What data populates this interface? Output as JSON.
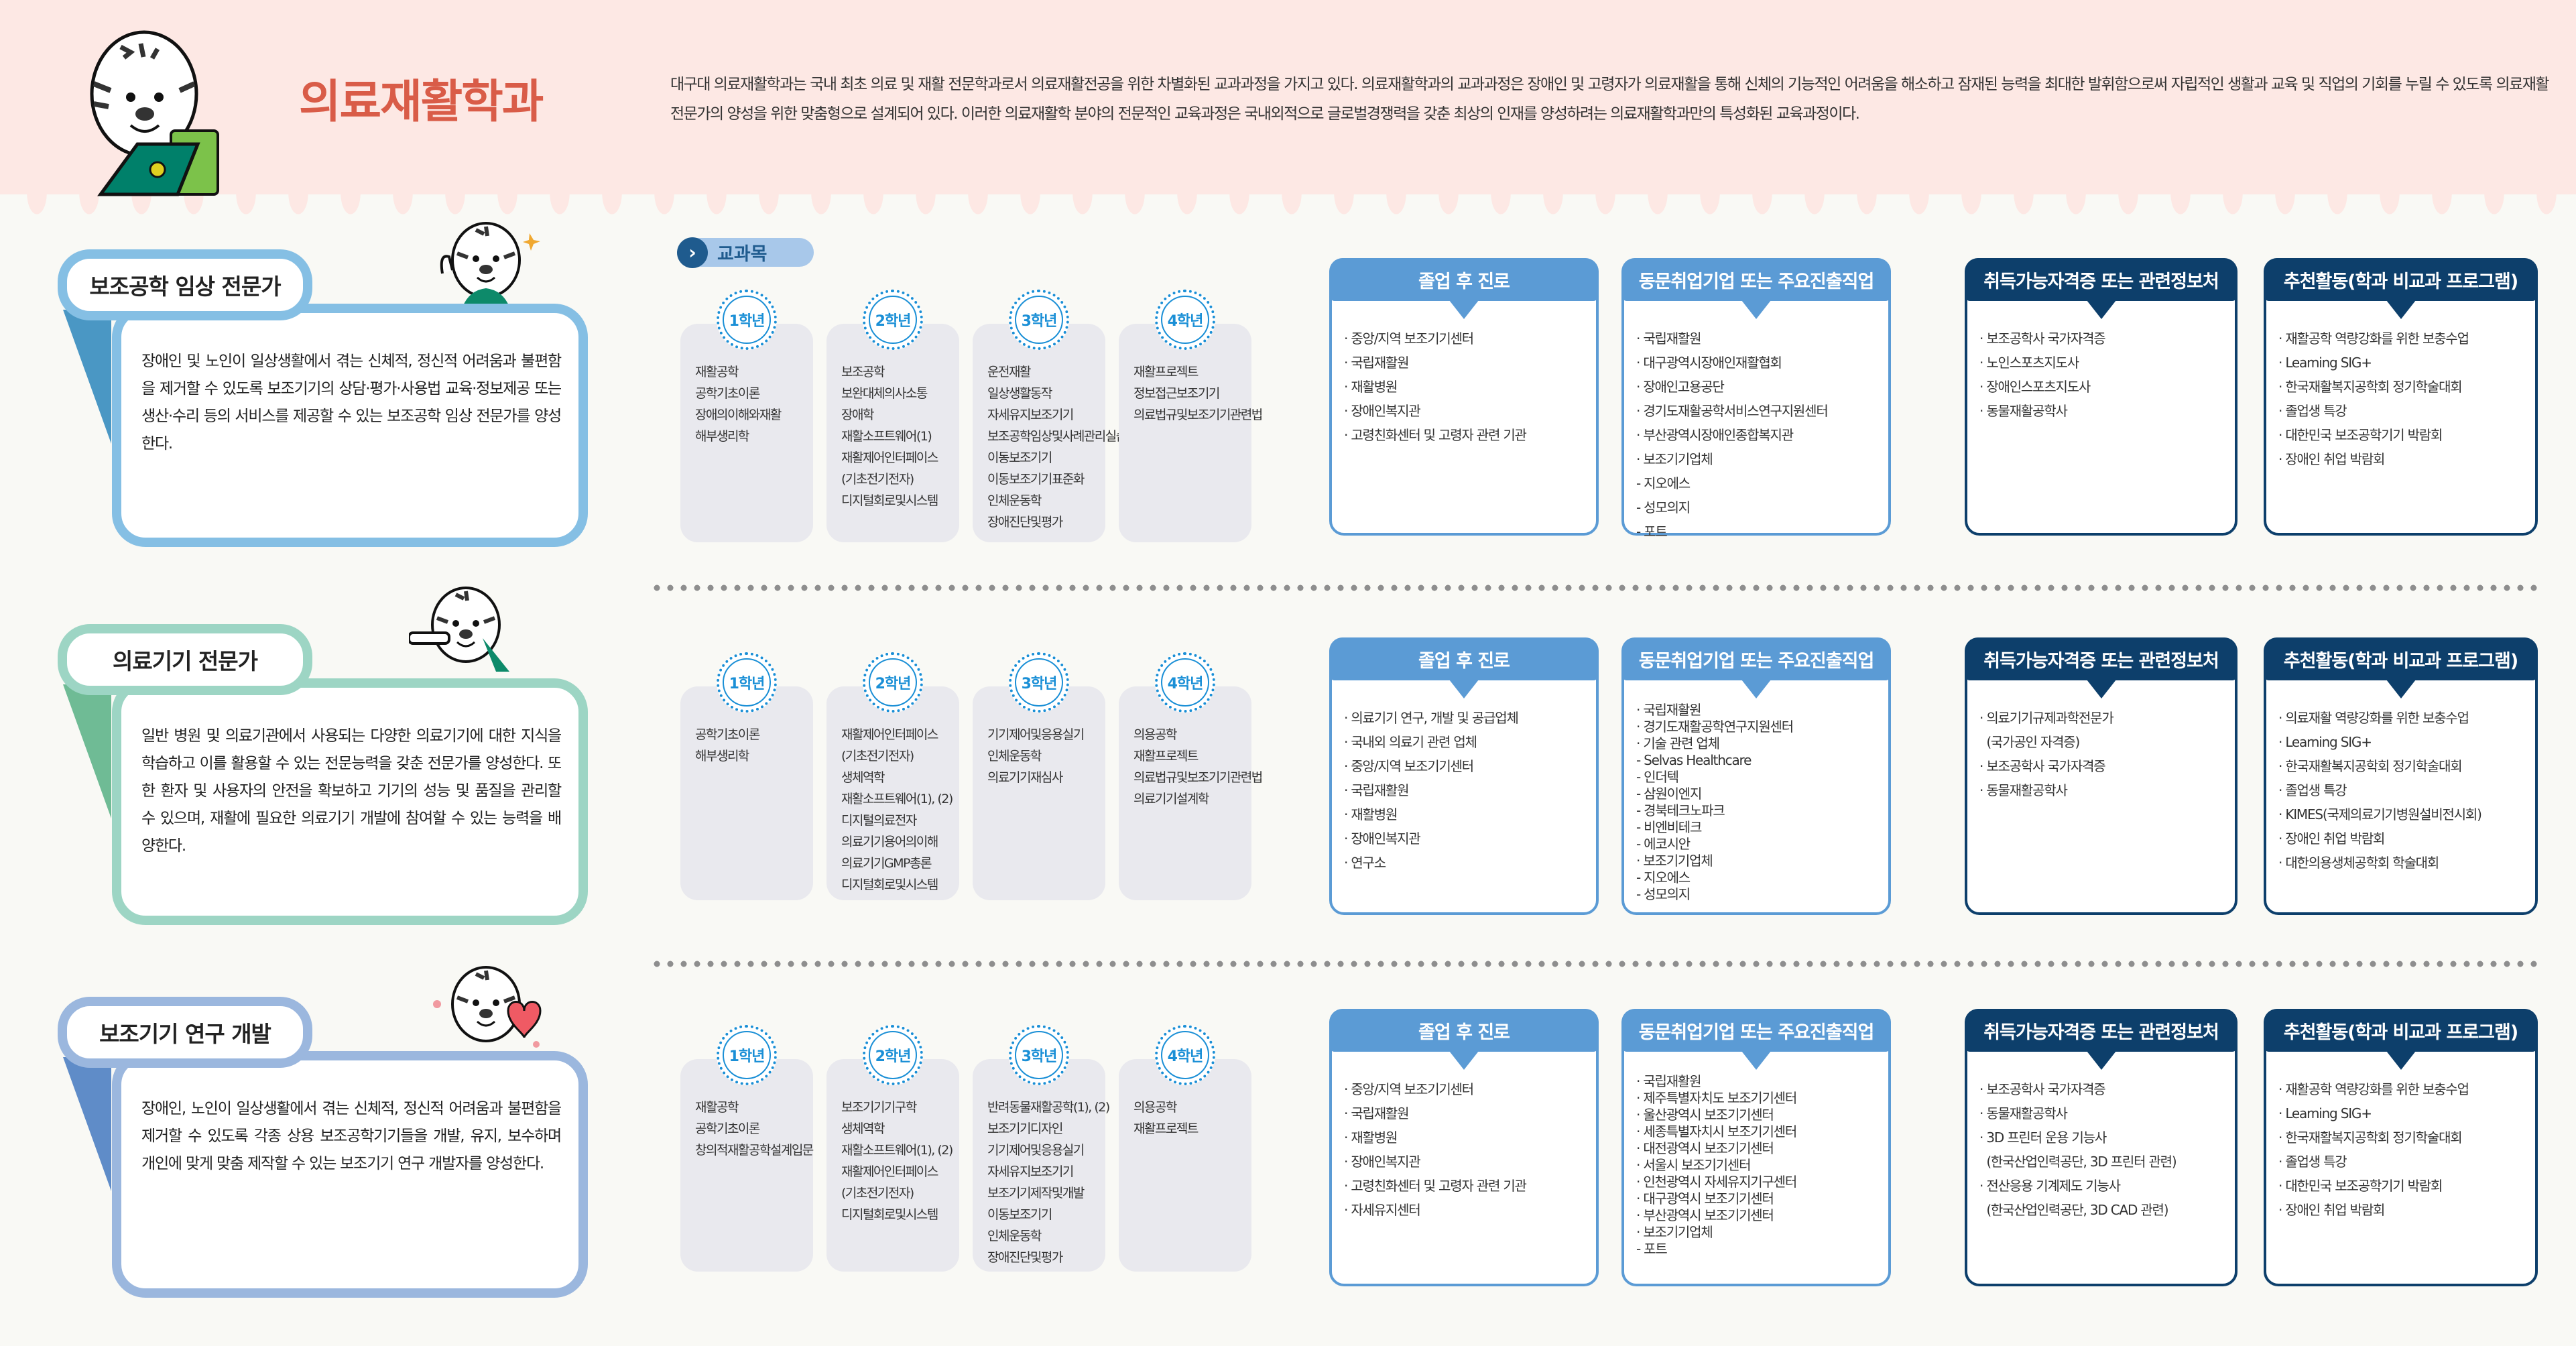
{
  "header": {
    "title": "의료재활학과",
    "description": "대구대 의료재활학과는 국내 최초 의료 및 재활 전문학과로서 의료재활전공을 위한 차별화된 교과과정을 가지고 있다. 의료재활학과의 교과과정은 장애인 및 고령자가 의료재활을 통해 신체의 기능적인 어려움을 해소하고 잠재된 능력을 최대한 발휘함으로써 자립적인 생활과 교육 및 직업의 기회를 누릴 수 있도록 의료재활 전문가의 양성을 위한 맞춤형으로 설계되어 있다. 이러한 의료재활학 분야의 전문적인 교육과정은 국내외적으로 글로벌경쟁력을 갖춘 최상의 인재를 양성하려는 의료재활학과만의 특성화된 교육과정이다."
  },
  "courses_label": "교과목",
  "colors": {
    "title": "#d95c48",
    "header_bg": "#fde8e4",
    "box_blue": "#5b9bd5",
    "box_navy": "#0d3f6b",
    "year_blue": "#1a8fd6",
    "card_bg": "#e9e9ee"
  },
  "box_headers": [
    "졸업 후 진로",
    "동문취업기업 또는 주요진출직업",
    "취득가능자격증 또는 관련정보처",
    "추천활동(학과 비교과 프로그램)"
  ],
  "sections": [
    {
      "name": "보조공학 임상 전문가",
      "theme": {
        "border": "#85bfe4",
        "fold": "#4a97c4"
      },
      "mascot": "tiger-thumbs-up",
      "description": "장애인 및 노인이 일상생활에서 겪는 신체적, 정신적 어려움과 불편함을 제거할 수 있도록 보조기기의 상담·평가·사용법 교육·정보제공 또는 생산·수리 등의 서비스를 제공할 수 있는 보조공학 임상 전문가를 양성한다.",
      "years": [
        {
          "label": "1학년",
          "courses": [
            "재활공학",
            "공학기초이론",
            "장애의이해와재활",
            "해부생리학"
          ]
        },
        {
          "label": "2학년",
          "courses": [
            "보조공학",
            "보완대체의사소통",
            "장애학",
            "재활소프트웨어(1)",
            "재활제어인터페이스",
            "(기초전기전자)",
            "디지털회로및시스템"
          ]
        },
        {
          "label": "3학년",
          "courses": [
            "운전재활",
            "일상생활동작",
            "자세유지보조기기",
            "보조공학임상및사례관리실습",
            "이동보조기기",
            "이동보조기기표준화",
            "인체운동학",
            "장애진단및평가"
          ]
        },
        {
          "label": "4학년",
          "courses": [
            "재활프로젝트",
            "정보접근보조기기",
            "의료법규및보조기기관련법"
          ]
        }
      ],
      "boxes": [
        {
          "items": [
            "· 중앙/지역 보조기기센터",
            "· 국립재활원",
            "· 재활병원",
            "· 장애인복지관",
            "· 고령친화센터 및 고령자 관련 기관"
          ]
        },
        {
          "items": [
            "· 국립재활원",
            "· 대구광역시장애인재활협회",
            "· 장애인고용공단",
            "· 경기도재활공학서비스연구지원센터",
            "· 부산광역시장애인종합복지관",
            "· 보조기기업체",
            "- 지오에스",
            "- 성모의지",
            "- 포트"
          ]
        },
        {
          "items": [
            "· 보조공학사 국가자격증",
            "· 노인스포츠지도사",
            "· 장애인스포츠지도사",
            "· 동물재활공학사"
          ]
        },
        {
          "items": [
            "· 재활공학 역량강화를 위한 보충수업",
            "· Learning SIG+",
            "· 한국재활복지공학회 정기학술대회",
            "· 졸업생 특강",
            "· 대한민국 보조공학기기 박람회",
            "· 장애인 취업 박람회"
          ]
        }
      ]
    },
    {
      "name": "의료기기 전문가",
      "theme": {
        "border": "#9dd5c4",
        "fold": "#6fbb95"
      },
      "mascot": "tiger-pointing",
      "description": "일반 병원 및 의료기관에서 사용되는 다양한 의료기기에 대한 지식을 학습하고 이를 활용할 수 있는 전문능력을 갖춘 전문가를 양성한다. 또한 환자 및 사용자의 안전을 확보하고 기기의 성능 및 품질을 관리할 수 있으며, 재활에 필요한 의료기기 개발에 참여할 수 있는 능력을 배양한다.",
      "years": [
        {
          "label": "1학년",
          "courses": [
            "공학기초이론",
            "해부생리학"
          ]
        },
        {
          "label": "2학년",
          "courses": [
            "재활제어인터페이스",
            "(기초전기전자)",
            "생체역학",
            "재활소프트웨어(1), (2)",
            "디지털의료전자",
            "의료기기용어의이해",
            "의료기기GMP총론",
            "디지털회로및시스템"
          ]
        },
        {
          "label": "3학년",
          "courses": [
            "기기제어및응용실기",
            "인체운동학",
            "의료기기재심사"
          ]
        },
        {
          "label": "4학년",
          "courses": [
            "의용공학",
            "재활프로젝트",
            "의료법규및보조기기관련법",
            "의료기기설계학"
          ]
        }
      ],
      "boxes": [
        {
          "items": [
            "· 의료기기 연구, 개발 및 공급업체",
            "· 국내외 의료기 관련 업체",
            "· 중앙/지역 보조기기센터",
            "· 국립재활원",
            "· 재활병원",
            "· 장애인복지관",
            "· 연구소"
          ]
        },
        {
          "compact": true,
          "items": [
            "· 국립재활원",
            "· 경기도재활공학연구지원센터",
            "· 기술 관련 업체",
            "- Selvas Healthcare",
            "- 인더텍",
            "- 삼원이엔지",
            "- 경북테크노파크",
            "- 비엔비테크",
            "- 에코시안",
            "· 보조기기업체",
            "- 지오에스",
            "- 성모의지"
          ]
        },
        {
          "items": [
            "· 의료기기규제과학전문가",
            "  (국가공인 자격증)",
            "· 보조공학사 국가자격증",
            "· 동물재활공학사"
          ]
        },
        {
          "items": [
            "· 의료재활 역량강화를 위한 보충수업",
            "· Learning SIG+",
            "· 한국재활복지공학회 정기학술대회",
            "· 졸업생 특강",
            "· KIMES(국제의료기기병원설비전시회)",
            "· 장애인 취업 박람회",
            "· 대한의용생체공학회 학술대회"
          ]
        }
      ]
    },
    {
      "name": "보조기기 연구 개발",
      "theme": {
        "border": "#9bb7de",
        "fold": "#5f8cc8"
      },
      "mascot": "tiger-heart",
      "description": "장애인, 노인이 일상생활에서 겪는 신체적, 정신적 어려움과 불편함을 제거할 수 있도록 각종 상용 보조공학기기들을 개발, 유지, 보수하며 개인에 맞게 맞춤 제작할 수 있는 보조기기 연구 개발자를 양성한다.",
      "years": [
        {
          "label": "1학년",
          "courses": [
            "재활공학",
            "공학기초이론",
            "창의적재활공학설계입문"
          ]
        },
        {
          "label": "2학년",
          "courses": [
            "보조기기기구학",
            "생체역학",
            "재활소프트웨어(1), (2)",
            "재활제어인터페이스",
            "(기초전기전자)",
            "디지털회로및시스템"
          ]
        },
        {
          "label": "3학년",
          "courses": [
            "반려동물재활공학(1), (2)",
            "보조기기디자인",
            "기기제어및응용실기",
            "자세유지보조기기",
            "보조기기제작및개발",
            "이동보조기기",
            "인체운동학",
            "장애진단및평가"
          ]
        },
        {
          "label": "4학년",
          "courses": [
            "의용공학",
            "재활프로젝트"
          ]
        }
      ],
      "boxes": [
        {
          "items": [
            "· 중앙/지역 보조기기센터",
            "· 국립재활원",
            "· 재활병원",
            "· 장애인복지관",
            "· 고령친화센터 및 고령자 관련 기관",
            "· 자세유지센터"
          ]
        },
        {
          "compact": true,
          "items": [
            "· 국립재활원",
            "· 제주특별자치도 보조기기센터",
            "· 울산광역시 보조기기센터",
            "· 세종특별자치시 보조기기센터",
            "· 대전광역시 보조기기센터",
            "· 서울시 보조기기센터",
            "· 인천광역시 자세유지기구센터",
            "· 대구광역시 보조기기센터",
            "· 부산광역시 보조기기센터",
            "· 보조기기업체",
            "- 포트"
          ]
        },
        {
          "items": [
            "· 보조공학사 국가자격증",
            "· 동물재활공학사",
            "· 3D 프린터 운용 기능사",
            "  (한국산업인력공단, 3D 프린터 관련)",
            "· 전산응용 기계제도 기능사",
            "  (한국산업인력공단, 3D CAD 관련)"
          ]
        },
        {
          "items": [
            "· 재활공학 역량강화를 위한 보충수업",
            "· Learning SIG+",
            "· 한국재활복지공학회 정기학술대회",
            "· 졸업생 특강",
            "· 대한민국 보조공학기기 박람회",
            "· 장애인 취업 박람회"
          ]
        }
      ]
    }
  ]
}
